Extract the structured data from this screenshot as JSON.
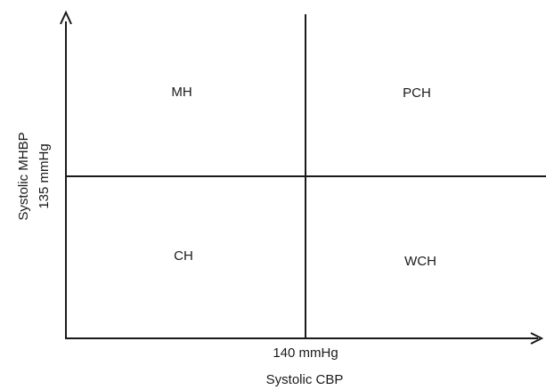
{
  "quadrants": {
    "top_left": "MH",
    "top_right": "PCH",
    "bottom_left": "CH",
    "bottom_right": "WCH"
  },
  "x_axis": {
    "title": "Systolic CBP",
    "threshold_label": "140 mmHg"
  },
  "y_axis": {
    "title": "Systolic MHBP",
    "threshold_label": "135 mmHg"
  },
  "colors": {
    "line": "#1a1a1a",
    "background": "#ffffff"
  }
}
